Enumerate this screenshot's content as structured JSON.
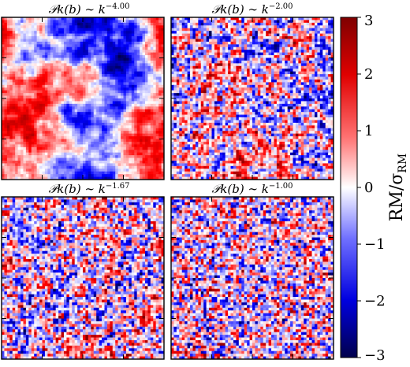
{
  "chart_data": [
    {
      "type": "heatmap",
      "panel": "top-left",
      "title": "𝒫k(b) ∼ k",
      "title_exponent": "−4.00",
      "spectral_index": -4.0,
      "axes_tick_labels": "none"
    },
    {
      "type": "heatmap",
      "panel": "top-right",
      "title": "𝒫k(b) ∼ k",
      "title_exponent": "−2.00",
      "spectral_index": -2.0,
      "axes_tick_labels": "none"
    },
    {
      "type": "heatmap",
      "panel": "bottom-left",
      "title": "𝒫k(b) ∼ k",
      "title_exponent": "−1.67",
      "spectral_index": -1.67,
      "axes_tick_labels": "none"
    },
    {
      "type": "heatmap",
      "panel": "bottom-right",
      "title": "𝒫k(b) ∼ k",
      "title_exponent": "−1.00",
      "spectral_index": -1.0,
      "axes_tick_labels": "none"
    }
  ],
  "colorbar": {
    "label": "RM/σ",
    "label_subscript": "RM",
    "range": [
      -3,
      3
    ],
    "ticks": [
      3,
      2,
      1,
      0,
      -1,
      -2,
      -3
    ],
    "tick_labels": [
      "3",
      "2",
      "1",
      "0",
      "−1",
      "−2",
      "−3"
    ],
    "colormap": "seismic",
    "colors": {
      "low": "#00007f",
      "mid": "#ffffff",
      "high": "#7f0000"
    }
  }
}
